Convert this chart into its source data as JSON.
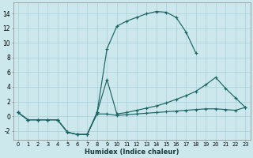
{
  "xlabel": "Humidex (Indice chaleur)",
  "bg_color": "#cce8ed",
  "grid_color": "#aacfd8",
  "line_color": "#1a6464",
  "xlim": [
    -0.5,
    23.5
  ],
  "ylim": [
    -3.2,
    15.5
  ],
  "xticks": [
    0,
    1,
    2,
    3,
    4,
    5,
    6,
    7,
    8,
    9,
    10,
    11,
    12,
    13,
    14,
    15,
    16,
    17,
    18,
    19,
    20,
    21,
    22,
    23
  ],
  "yticks": [
    -2,
    0,
    2,
    4,
    6,
    8,
    10,
    12,
    14
  ],
  "curves": [
    {
      "x": [
        0,
        1,
        2,
        3,
        4,
        5,
        6,
        7,
        8,
        9,
        10,
        11,
        12,
        13,
        14,
        15,
        16,
        17,
        18
      ],
      "y": [
        0.5,
        -0.5,
        -0.5,
        -0.5,
        -0.5,
        -2.2,
        -2.5,
        -2.5,
        0.5,
        9.2,
        12.3,
        13.0,
        13.5,
        14.0,
        14.3,
        14.2,
        13.5,
        11.5,
        8.6
      ]
    },
    {
      "x": [
        0,
        1,
        2,
        3,
        4,
        5,
        6,
        7,
        8,
        9,
        10,
        11,
        12,
        13,
        14,
        15,
        16,
        17,
        18,
        19,
        20,
        21,
        22,
        23
      ],
      "y": [
        0.5,
        -0.5,
        -0.5,
        -0.5,
        -0.5,
        -2.2,
        -2.5,
        -2.5,
        0.5,
        5.0,
        0.3,
        0.5,
        0.8,
        1.1,
        1.4,
        1.8,
        2.3,
        2.8,
        3.4,
        4.3,
        5.3,
        3.8,
        2.5,
        1.2
      ]
    },
    {
      "x": [
        0,
        1,
        2,
        3,
        4,
        5,
        6,
        7,
        8,
        9,
        10,
        11,
        12,
        13,
        14,
        15,
        16,
        17,
        18,
        19,
        20,
        21,
        22,
        23
      ],
      "y": [
        0.5,
        -0.5,
        -0.5,
        -0.5,
        -0.5,
        -2.2,
        -2.5,
        -2.5,
        0.3,
        0.3,
        0.1,
        0.2,
        0.3,
        0.4,
        0.5,
        0.6,
        0.7,
        0.8,
        0.9,
        1.0,
        1.0,
        0.9,
        0.8,
        1.2
      ]
    }
  ]
}
